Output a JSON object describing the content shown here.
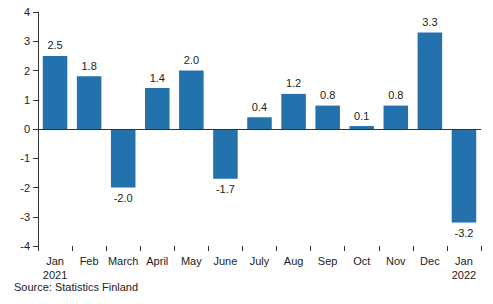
{
  "chart_data": {
    "type": "bar",
    "categories": [
      "Jan\n2021",
      "Feb",
      "March",
      "April",
      "May",
      "June",
      "July",
      "Aug",
      "Sep",
      "Oct",
      "Nov",
      "Dec",
      "Jan\n2022"
    ],
    "values": [
      2.5,
      1.8,
      -2.0,
      1.4,
      2.0,
      -1.7,
      0.4,
      1.2,
      0.8,
      0.1,
      0.8,
      3.3,
      -3.2
    ],
    "value_labels": [
      "2.5",
      "1.8",
      "-2.0",
      "1.4",
      "2.0",
      "-1.7",
      "0.4",
      "1.2",
      "0.8",
      "0.1",
      "0.8",
      "3.3",
      "-3.2"
    ],
    "color": "#2371ad",
    "ylim": [
      -4,
      4
    ],
    "yticks": [
      -4,
      -3,
      -2,
      -1,
      0,
      1,
      2,
      3,
      4
    ],
    "grid": false,
    "data_labels": true,
    "source": "Source: Statistics Finland"
  }
}
